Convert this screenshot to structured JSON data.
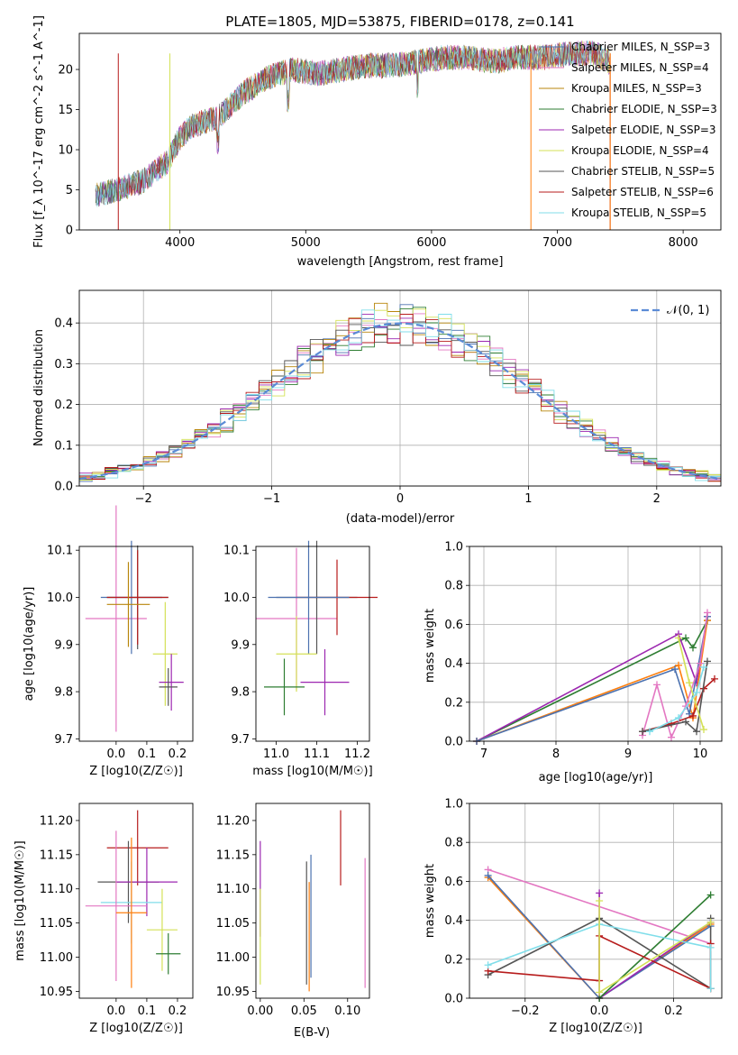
{
  "title": "PLATE=1805, MJD=53875, FIBERID=0178, z=0.141",
  "colors": {
    "ch_miles": "#4c72b0",
    "sa_miles": "#e377c2",
    "kr_miles": "#b8860b",
    "ch_elodie": "#2e7d32",
    "sa_elodie": "#9c27b0",
    "kr_elodie": "#d4e157",
    "ch_stelib": "#555555",
    "sa_stelib": "#b71c1c",
    "kr_stelib": "#80deea",
    "extra_orange": "#ff7f0e",
    "gaussian": "#5b8bd6"
  },
  "panels": {
    "spectrum": {
      "xlabel": "wavelength [Angstrom, rest frame]",
      "ylabel": "Flux [f_λ 10^-17 erg cm^-2 s^-1 A^-1]",
      "xticks": [
        "4000",
        "5000",
        "6000",
        "7000",
        "8000"
      ],
      "yticks": [
        "0",
        "5",
        "10",
        "15",
        "20"
      ]
    },
    "resid": {
      "xlabel": "(data-model)/error",
      "ylabel": "Normed distribution",
      "xticks": [
        "−2",
        "−1",
        "0",
        "1",
        "2"
      ],
      "yticks": [
        "0.0",
        "0.1",
        "0.2",
        "0.3",
        "0.4"
      ],
      "legend": "𝒩(0, 1)"
    },
    "age_Z": {
      "ylabel": "age  [log10(age/yr)]",
      "xlabel": "Z [log10(Z/Z☉)]",
      "xticks": [
        "0.0",
        "0.1",
        "0.2"
      ],
      "yticks": [
        "9.7",
        "9.8",
        "9.9",
        "10.0",
        "10.1"
      ]
    },
    "age_mass": {
      "xlabel": "mass [log10(M/M☉)]",
      "xticks": [
        "11.0",
        "11.1",
        "11.2"
      ],
      "yticks": [
        "9.7",
        "9.8",
        "9.9",
        "10.0",
        "10.1"
      ]
    },
    "mw_age": {
      "xlabel": "age  [log10(age/yr)]",
      "ylabel": "mass weight",
      "xticks": [
        "7",
        "8",
        "9",
        "10"
      ],
      "yticks": [
        "0.0",
        "0.2",
        "0.4",
        "0.6",
        "0.8",
        "1.0"
      ]
    },
    "mass_Z": {
      "ylabel": "mass [log10(M/M☉)]",
      "xlabel": "Z [log10(Z/Z☉)]",
      "xticks": [
        "0.0",
        "0.1",
        "0.2"
      ],
      "yticks": [
        "10.95",
        "11.00",
        "11.05",
        "11.10",
        "11.15",
        "11.20"
      ]
    },
    "mass_ebv": {
      "xlabel": "E(B-V)",
      "xticks": [
        "0.00",
        "0.05",
        "0.10"
      ],
      "yticks": [
        "10.95",
        "11.00",
        "11.05",
        "11.10",
        "11.15",
        "11.20"
      ]
    },
    "mw_Z": {
      "xlabel": "Z [log10(Z/Z☉)]",
      "ylabel": "mass weight",
      "xticks": [
        "−0.2",
        "0.0",
        "0.2"
      ],
      "yticks": [
        "0.0",
        "0.2",
        "0.4",
        "0.6",
        "0.8",
        "1.0"
      ]
    }
  },
  "legend_top": [
    {
      "label": "Chabrier MILES, N_SSP=3",
      "color": "#4c72b0"
    },
    {
      "label": "Salpeter MILES, N_SSP=4",
      "color": "#e377c2"
    },
    {
      "label": "Kroupa MILES, N_SSP=3",
      "color": "#b8860b"
    },
    {
      "label": "Chabrier ELODIE, N_SSP=3",
      "color": "#2e7d32"
    },
    {
      "label": "Salpeter ELODIE, N_SSP=3",
      "color": "#9c27b0"
    },
    {
      "label": "Kroupa ELODIE, N_SSP=4",
      "color": "#d4e157"
    },
    {
      "label": "Chabrier STELIB, N_SSP=5",
      "color": "#555555"
    },
    {
      "label": "Salpeter STELIB, N_SSP=6",
      "color": "#b71c1c"
    },
    {
      "label": "Kroupa STELIB, N_SSP=5",
      "color": "#80deea"
    }
  ],
  "chart_data": [
    {
      "type": "line",
      "name": "spectrum",
      "xlim": [
        3200,
        8300
      ],
      "ylim": [
        0,
        24.5
      ],
      "x": [
        3330,
        3500,
        3700,
        3900,
        4000,
        4100,
        4300,
        4500,
        4700,
        4900,
        5100,
        5300,
        5500,
        5700,
        5900,
        6100,
        6300,
        6500,
        6700,
        6900,
        7100,
        7300,
        7400
      ],
      "y": [
        4.3,
        5,
        6,
        8.5,
        11.5,
        13,
        14,
        17,
        19,
        20,
        19.5,
        20,
        20.5,
        20.5,
        21,
        21.5,
        21.5,
        21,
        21.5,
        21.5,
        22,
        22,
        21
      ]
    },
    {
      "type": "line",
      "name": "normed-residuals",
      "xlim": [
        -2.5,
        2.5
      ],
      "ylim": [
        0,
        0.48
      ],
      "x": [
        -2.5,
        -2.25,
        -2,
        -1.75,
        -1.5,
        -1.25,
        -1,
        -0.75,
        -0.5,
        -0.25,
        0,
        0.25,
        0.5,
        0.75,
        1,
        1.25,
        1.5,
        1.75,
        2,
        2.25,
        2.5
      ],
      "y": [
        0.03,
        0.035,
        0.05,
        0.08,
        0.13,
        0.19,
        0.25,
        0.31,
        0.35,
        0.38,
        0.4,
        0.38,
        0.35,
        0.3,
        0.24,
        0.18,
        0.13,
        0.08,
        0.05,
        0.035,
        0.03
      ],
      "gaussian": true
    },
    {
      "type": "scatter",
      "name": "age-vs-Z",
      "xlim": [
        -0.12,
        0.25
      ],
      "ylim": [
        9.695,
        10.108
      ],
      "points": [
        {
          "x": 0.0,
          "y": 9.955,
          "xerr": 0.1,
          "yerr": 0.24,
          "c": "#e377c2"
        },
        {
          "x": 0.05,
          "y": 10.0,
          "xerr": 0.1,
          "yerr": 0.12,
          "c": "#4c72b0"
        },
        {
          "x": 0.07,
          "y": 10.0,
          "xerr": 0.1,
          "yerr": 0.11,
          "c": "#555555"
        },
        {
          "x": 0.07,
          "y": 10.0,
          "xerr": 0.1,
          "yerr": 0.1,
          "c": "#b71c1c"
        },
        {
          "x": 0.04,
          "y": 9.985,
          "xerr": 0.07,
          "yerr": 0.09,
          "c": "#b8860b"
        },
        {
          "x": 0.16,
          "y": 9.88,
          "xerr": 0.04,
          "yerr": 0.11,
          "c": "#d4e157"
        },
        {
          "x": 0.18,
          "y": 9.82,
          "xerr": 0.04,
          "yerr": 0.06,
          "c": "#9c27b0"
        },
        {
          "x": 0.17,
          "y": 9.81,
          "xerr": 0.03,
          "yerr": 0.04,
          "c": "#555555"
        }
      ]
    },
    {
      "type": "scatter",
      "name": "age-vs-mass",
      "xlim": [
        10.95,
        11.23
      ],
      "ylim": [
        9.695,
        10.108
      ],
      "points": [
        {
          "x": 11.05,
          "y": 9.955,
          "xerr": 0.1,
          "yerr": 0.15,
          "c": "#e377c2"
        },
        {
          "x": 11.1,
          "y": 10.0,
          "xerr": 0.1,
          "yerr": 0.12,
          "c": "#555555"
        },
        {
          "x": 11.15,
          "y": 10.0,
          "xerr": 0.1,
          "yerr": 0.08,
          "c": "#b71c1c"
        },
        {
          "x": 11.08,
          "y": 10.0,
          "xerr": 0.1,
          "yerr": 0.12,
          "c": "#4c72b0"
        },
        {
          "x": 11.05,
          "y": 9.88,
          "xerr": 0.05,
          "yerr": 0.08,
          "c": "#d4e157"
        },
        {
          "x": 11.12,
          "y": 9.82,
          "xerr": 0.06,
          "yerr": 0.07,
          "c": "#9c27b0"
        },
        {
          "x": 11.02,
          "y": 9.81,
          "xerr": 0.05,
          "yerr": 0.06,
          "c": "#2e7d32"
        }
      ]
    },
    {
      "type": "line",
      "name": "mass-weight-vs-age",
      "xlim": [
        6.8,
        10.3
      ],
      "ylim": [
        0,
        1
      ],
      "series": [
        {
          "c": "#2e7d32",
          "x": [
            6.9,
            9.8,
            9.9,
            10.1
          ],
          "y": [
            0,
            0.53,
            0.48,
            0.62
          ]
        },
        {
          "c": "#9c27b0",
          "x": [
            6.9,
            9.7,
            9.95,
            10.1
          ],
          "y": [
            0,
            0.55,
            0.3,
            0.64
          ]
        },
        {
          "c": "#ff7f0e",
          "x": [
            6.9,
            9.7,
            9.9,
            10.1
          ],
          "y": [
            0,
            0.39,
            0.12,
            0.62
          ]
        },
        {
          "c": "#4c72b0",
          "x": [
            6.9,
            9.65,
            9.85,
            10.1
          ],
          "y": [
            0,
            0.37,
            0.14,
            0.64
          ]
        },
        {
          "c": "#e377c2",
          "x": [
            9.2,
            9.4,
            9.6,
            9.8,
            10.0,
            10.1
          ],
          "y": [
            0.03,
            0.29,
            0.02,
            0.18,
            0.4,
            0.66
          ]
        },
        {
          "c": "#b71c1c",
          "x": [
            9.2,
            9.6,
            9.9,
            10.05,
            10.2
          ],
          "y": [
            0.05,
            0.09,
            0.13,
            0.27,
            0.32
          ]
        },
        {
          "c": "#555555",
          "x": [
            9.2,
            9.8,
            9.95,
            10.1
          ],
          "y": [
            0.05,
            0.1,
            0.05,
            0.41
          ]
        },
        {
          "c": "#d4e157",
          "x": [
            9.7,
            9.85,
            10.05
          ],
          "y": [
            0.53,
            0.3,
            0.06
          ]
        },
        {
          "c": "#80deea",
          "x": [
            9.3,
            9.7,
            9.95,
            10.05
          ],
          "y": [
            0.05,
            0.12,
            0.25,
            0.38
          ]
        }
      ]
    },
    {
      "type": "scatter",
      "name": "mass-vs-Z",
      "xlim": [
        -0.12,
        0.25
      ],
      "ylim": [
        10.94,
        11.225
      ],
      "points": [
        {
          "x": 0.07,
          "y": 11.16,
          "xerr": 0.1,
          "yerr": 0.055,
          "c": "#b71c1c"
        },
        {
          "x": 0.04,
          "y": 11.11,
          "xerr": 0.1,
          "yerr": 0.06,
          "c": "#555555"
        },
        {
          "x": 0.1,
          "y": 11.11,
          "xerr": 0.1,
          "yerr": 0.05,
          "c": "#9c27b0"
        },
        {
          "x": 0.05,
          "y": 11.08,
          "xerr": 0.1,
          "yerr": 0.06,
          "c": "#80deea"
        },
        {
          "x": 0.0,
          "y": 11.075,
          "xerr": 0.1,
          "yerr": 0.11,
          "c": "#e377c2"
        },
        {
          "x": 0.05,
          "y": 11.065,
          "xerr": 0.05,
          "yerr": 0.11,
          "c": "#ff7f0e"
        },
        {
          "x": 0.15,
          "y": 11.04,
          "xerr": 0.05,
          "yerr": 0.06,
          "c": "#d4e157"
        },
        {
          "x": 0.17,
          "y": 11.005,
          "xerr": 0.04,
          "yerr": 0.03,
          "c": "#2e7d32"
        }
      ]
    },
    {
      "type": "scatter",
      "name": "mass-vs-EBV",
      "xlim": [
        -0.005,
        0.125
      ],
      "ylim": [
        10.94,
        11.225
      ],
      "points": [
        {
          "x": 0.0,
          "y": 11.1,
          "xerr": 0,
          "yerr": 0.07,
          "c": "#9c27b0"
        },
        {
          "x": 0.0,
          "y": 11.03,
          "xerr": 0,
          "yerr": 0.07,
          "c": "#d4e157"
        },
        {
          "x": 0.053,
          "y": 11.05,
          "xerr": 0,
          "yerr": 0.09,
          "c": "#555555"
        },
        {
          "x": 0.056,
          "y": 11.03,
          "xerr": 0,
          "yerr": 0.08,
          "c": "#ff7f0e"
        },
        {
          "x": 0.058,
          "y": 11.06,
          "xerr": 0,
          "yerr": 0.09,
          "c": "#4c72b0"
        },
        {
          "x": 0.092,
          "y": 11.16,
          "xerr": 0,
          "yerr": 0.055,
          "c": "#b71c1c"
        },
        {
          "x": 0.12,
          "y": 11.05,
          "xerr": 0,
          "yerr": 0.095,
          "c": "#e377c2"
        }
      ]
    },
    {
      "type": "line",
      "name": "mass-weight-vs-Z",
      "xlim": [
        -0.35,
        0.33
      ],
      "ylim": [
        0,
        1
      ],
      "series": [
        {
          "c": "#e377c2",
          "x": [
            -0.3,
            0.3
          ],
          "y": [
            0.66,
            0.28
          ]
        },
        {
          "c": "#ff7f0e",
          "x": [
            -0.3,
            0.0,
            0.3
          ],
          "y": [
            0.62,
            0.0,
            0.38
          ]
        },
        {
          "c": "#4c72b0",
          "x": [
            -0.3,
            0.0,
            0.3
          ],
          "y": [
            0.63,
            0.0,
            0.37
          ]
        },
        {
          "c": "#9c27b0",
          "x": [
            0.0,
            0.0,
            0.3
          ],
          "y": [
            0.54,
            0.0,
            0.39
          ]
        },
        {
          "c": "#2e7d32",
          "x": [
            0.0,
            0.3
          ],
          "y": [
            0.0,
            0.53
          ]
        },
        {
          "c": "#555555",
          "x": [
            -0.3,
            0.0,
            0.3,
            0.3
          ],
          "y": [
            0.12,
            0.41,
            0.05,
            0.41
          ]
        },
        {
          "c": "#b71c1c",
          "x": [
            -0.3,
            0.0,
            0.0,
            0.3,
            0.3
          ],
          "y": [
            0.14,
            0.09,
            0.32,
            0.05,
            0.28
          ]
        },
        {
          "c": "#80deea",
          "x": [
            -0.3,
            0.0,
            0.3,
            0.3
          ],
          "y": [
            0.17,
            0.38,
            0.26,
            0.05
          ]
        },
        {
          "c": "#d4e157",
          "x": [
            0.0,
            0.0,
            0.3
          ],
          "y": [
            0.5,
            0.03,
            0.39
          ]
        }
      ]
    }
  ]
}
